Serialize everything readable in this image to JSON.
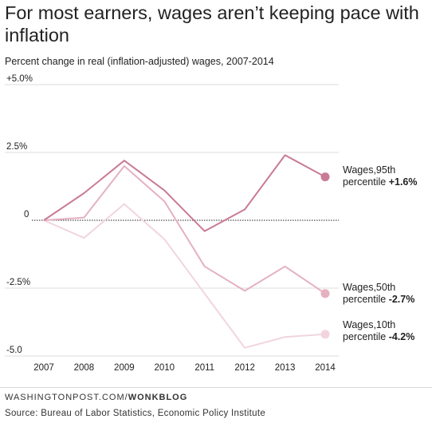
{
  "title": "For most earners, wages aren’t keeping pace with inflation",
  "subtitle": "Percent change in real (inflation-adjusted) wages, 2007-2014",
  "credit_site": "WASHINGTONPOST.COM/",
  "credit_blog": "WONKBLOG",
  "source": "Source: Bureau of Labor Statistics, Economic Policy Institute",
  "colors": {
    "p95": "#c97b93",
    "p50": "#e5b1c0",
    "p10": "#f1d5de"
  },
  "chart_data": {
    "type": "line",
    "title": "For most earners, wages aren’t keeping pace with inflation",
    "subtitle": "Percent change in real (inflation-adjusted) wages, 2007-2014",
    "xlabel": "",
    "ylabel": "",
    "x": [
      "2007",
      "2008",
      "2009",
      "2010",
      "2011",
      "2012",
      "2013",
      "2014"
    ],
    "ylim": [
      -5.0,
      5.0
    ],
    "y_ticks": [
      {
        "value": 5.0,
        "label": "+5.0%"
      },
      {
        "value": 2.5,
        "label": "2.5%"
      },
      {
        "value": 0,
        "label": "0"
      },
      {
        "value": -2.5,
        "label": "-2.5%"
      },
      {
        "value": -5.0,
        "label": "-5.0"
      }
    ],
    "grid": true,
    "series": [
      {
        "key": "p95",
        "values": [
          0,
          1.0,
          2.2,
          1.1,
          -0.4,
          0.4,
          2.4,
          1.6
        ],
        "label_line1": "Wages,95th",
        "label_line2": "percentile",
        "label_value": "+1.6%"
      },
      {
        "key": "p50",
        "values": [
          0,
          0.1,
          2.0,
          0.7,
          -1.7,
          -2.6,
          -1.7,
          -2.7
        ],
        "label_line1": "Wages,50th",
        "label_line2": "percentile",
        "label_value": "-2.7%"
      },
      {
        "key": "p10",
        "values": [
          0,
          -0.65,
          0.6,
          -0.7,
          -2.7,
          -4.7,
          -4.3,
          -4.2
        ],
        "label_line1": "Wages,10th",
        "label_line2": "percentile",
        "label_value": "-4.2%"
      }
    ]
  }
}
